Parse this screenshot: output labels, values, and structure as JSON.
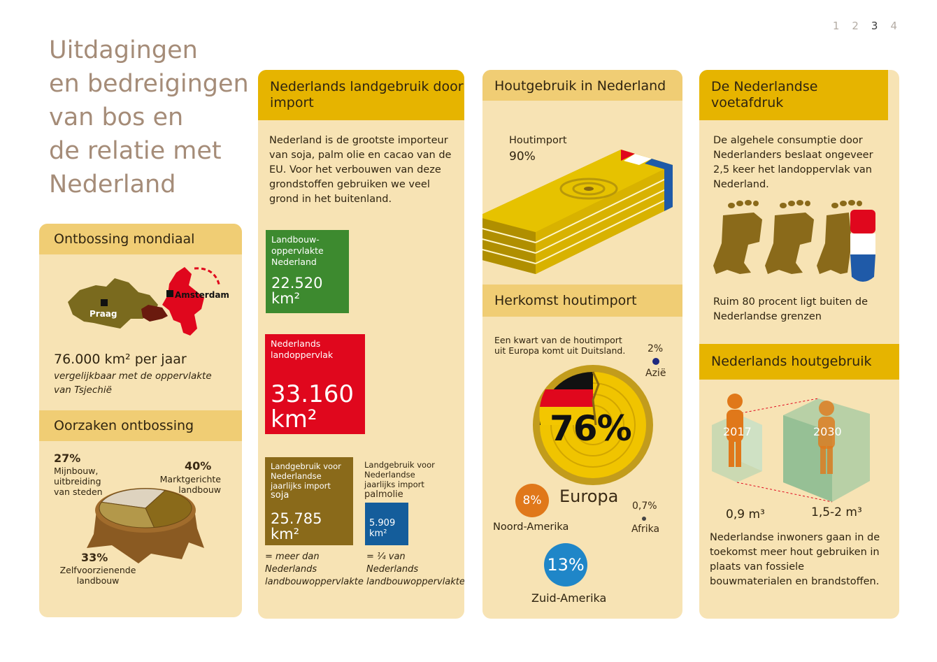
{
  "pagination": [
    "1",
    "2",
    "3",
    "4"
  ],
  "title": [
    "Uitdagingen",
    "en bedreigingen",
    "van bos en",
    "de relatie met",
    "Nederland"
  ],
  "ontbossing": {
    "heading": "Ontbossing mondiaal",
    "map_praag": "Praag",
    "map_amsterdam": "Amsterdam",
    "stat": "76.000 km² per jaar",
    "note": "vergelijkbaar met de oppervlakte van Tsjechië"
  },
  "oorzaken": {
    "heading": "Oorzaken ontbossing",
    "slices": [
      {
        "pct": "27%",
        "label": "Mijnbouw, uitbreiding van steden",
        "value": 27
      },
      {
        "pct": "40%",
        "label": "Marktgerichte landbouw",
        "value": 40
      },
      {
        "pct": "33%",
        "label": "Zelfvoorzienende landbouw",
        "value": 33
      }
    ]
  },
  "landgebruik": {
    "heading": "Nederlands landgebruik door import",
    "intro": "Nederland is de grootste importeur van soja, palm olie en cacao van de EU. Voor het verbouwen van deze grondstoffen gebruiken we veel grond in het buitenland.",
    "box_landbouw": {
      "label": "Landbouw- oppervlakte Nederland",
      "value": "22.520 km²"
    },
    "box_land": {
      "label": "Nederlands landoppervlak",
      "value": "33.160 km²"
    },
    "box_soja": {
      "label": "Landgebruik voor Nederlandse jaarlijks import",
      "product": "soja",
      "value": "25.785 km²",
      "note": "= meer dan Nederlands landbouwoppervlakte"
    },
    "box_palm": {
      "label": "Landgebruik voor Nederlandse jaarlijks import",
      "product": "palmolie",
      "value": "5.909 km²",
      "note": "= ¼ van Nederlands landbouwoppervlakte"
    }
  },
  "hout": {
    "heading": "Houtgebruik in Nederland",
    "import_label": "Houtimport",
    "import_pct": "90%",
    "herkomst_heading": "Herkomst houtimport",
    "herkomst_note": "Een kwart van de houtimport uit Europa komt uit Duitsland.",
    "europa_pct": "76%",
    "europa_label": "Europa",
    "azie_pct": "2%",
    "azie_label": "Azië",
    "afrika_pct": "0,7%",
    "afrika_label": "Afrika",
    "noord_pct": "8%",
    "noord_label": "Noord-Amerika",
    "zuid_pct": "13%",
    "zuid_label": "Zuid-Amerika"
  },
  "voetafdruk": {
    "heading": "De Nederlandse voetafdruk",
    "intro": "De algehele consumptie door Nederlanders beslaat ongeveer 2,5 keer het landoppervlak van Nederland.",
    "note": "Ruim 80 procent ligt buiten de Nederlandse grenzen"
  },
  "houtgebruik": {
    "heading": "Nederlands houtgebruik",
    "year1": "2017",
    "year2": "2030",
    "vol1": "0,9 m³",
    "vol2": "1,5-2 m³",
    "note": "Nederlandse inwoners gaan in de toekomst meer hout gebruiken in plaats van fossiele bouwmaterialen en brandstoffen."
  },
  "colors": {
    "accent": "#e6b400",
    "panel": "#f7e3b4",
    "green": "#3d8a2f",
    "red": "#e0071d",
    "brown": "#8a6a1a",
    "blue": "#145d9b",
    "orange": "#e0781a",
    "skyblue": "#1f86c8"
  }
}
